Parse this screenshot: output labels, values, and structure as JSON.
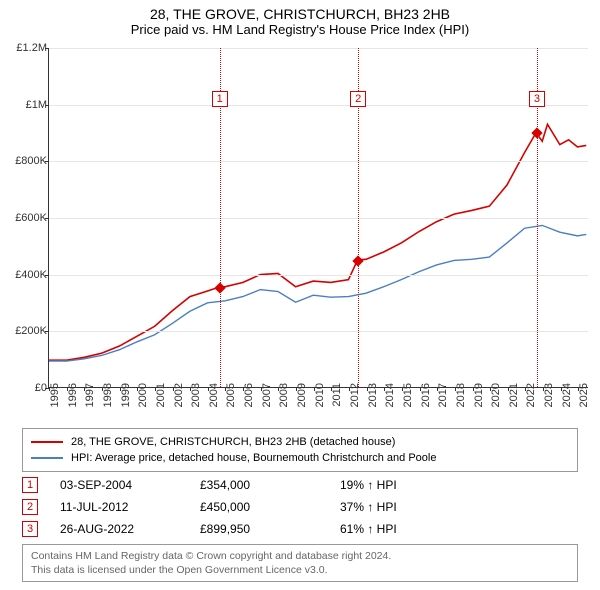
{
  "title": "28, THE GROVE, CHRISTCHURCH, BH23 2HB",
  "subtitle": "Price paid vs. HM Land Registry's House Price Index (HPI)",
  "chart": {
    "type": "line",
    "background_color": "#ffffff",
    "grid_color": "#e6e6e6",
    "axis_color": "#333333",
    "label_fontsize": 11,
    "x_years": [
      1995,
      1996,
      1997,
      1998,
      1999,
      2000,
      2001,
      2002,
      2003,
      2004,
      2005,
      2006,
      2007,
      2008,
      2009,
      2010,
      2011,
      2012,
      2013,
      2014,
      2015,
      2016,
      2017,
      2018,
      2019,
      2020,
      2021,
      2022,
      2023,
      2024,
      2025
    ],
    "xlim": [
      1995,
      2025.6
    ],
    "ylim": [
      0,
      1200000
    ],
    "ytick_step": 200000,
    "ytick_labels": [
      "£0",
      "£200K",
      "£400K",
      "£600K",
      "£800K",
      "£1M",
      "£1.2M"
    ],
    "series": [
      {
        "name": "price_paid",
        "color": "#d60000",
        "line_width": 1.6,
        "points": [
          [
            1995,
            95000
          ],
          [
            1996,
            95000
          ],
          [
            1997,
            105000
          ],
          [
            1998,
            120000
          ],
          [
            1999,
            145000
          ],
          [
            2000,
            180000
          ],
          [
            2001,
            215000
          ],
          [
            2002,
            270000
          ],
          [
            2003,
            320000
          ],
          [
            2004,
            340000
          ],
          [
            2004.67,
            354000
          ],
          [
            2005,
            355000
          ],
          [
            2006,
            370000
          ],
          [
            2007,
            398000
          ],
          [
            2008,
            402000
          ],
          [
            2009,
            355000
          ],
          [
            2010,
            375000
          ],
          [
            2011,
            370000
          ],
          [
            2012,
            380000
          ],
          [
            2012.52,
            450000
          ],
          [
            2013,
            452000
          ],
          [
            2014,
            478000
          ],
          [
            2015,
            510000
          ],
          [
            2016,
            550000
          ],
          [
            2017,
            585000
          ],
          [
            2018,
            612000
          ],
          [
            2019,
            625000
          ],
          [
            2020,
            640000
          ],
          [
            2021,
            715000
          ],
          [
            2022,
            830000
          ],
          [
            2022.65,
            899950
          ],
          [
            2023,
            870000
          ],
          [
            2023.3,
            930000
          ],
          [
            2024,
            858000
          ],
          [
            2024.5,
            875000
          ],
          [
            2025,
            850000
          ],
          [
            2025.5,
            855000
          ]
        ]
      },
      {
        "name": "hpi",
        "color": "#4a7fc4",
        "line_width": 1.4,
        "points": [
          [
            1995,
            92000
          ],
          [
            1996,
            92000
          ],
          [
            1997,
            100000
          ],
          [
            1998,
            112000
          ],
          [
            1999,
            132000
          ],
          [
            2000,
            160000
          ],
          [
            2001,
            185000
          ],
          [
            2002,
            225000
          ],
          [
            2003,
            268000
          ],
          [
            2004,
            298000
          ],
          [
            2005,
            305000
          ],
          [
            2006,
            320000
          ],
          [
            2007,
            345000
          ],
          [
            2008,
            338000
          ],
          [
            2009,
            300000
          ],
          [
            2010,
            325000
          ],
          [
            2011,
            318000
          ],
          [
            2012,
            320000
          ],
          [
            2013,
            332000
          ],
          [
            2014,
            355000
          ],
          [
            2015,
            380000
          ],
          [
            2016,
            408000
          ],
          [
            2017,
            432000
          ],
          [
            2018,
            448000
          ],
          [
            2019,
            452000
          ],
          [
            2020,
            460000
          ],
          [
            2021,
            510000
          ],
          [
            2022,
            562000
          ],
          [
            2023,
            572000
          ],
          [
            2024,
            548000
          ],
          [
            2025,
            535000
          ],
          [
            2025.5,
            540000
          ]
        ]
      }
    ],
    "sale_markers": [
      {
        "n": "1",
        "year": 2004.67,
        "value": 354000,
        "color": "#d60000"
      },
      {
        "n": "2",
        "year": 2012.52,
        "value": 450000,
        "color": "#d60000"
      },
      {
        "n": "3",
        "year": 2022.65,
        "value": 899950,
        "color": "#d60000"
      }
    ],
    "marker_box_y_value": 1020000
  },
  "legend": {
    "items": [
      {
        "color": "#d60000",
        "label": "28, THE GROVE, CHRISTCHURCH, BH23 2HB (detached house)"
      },
      {
        "color": "#4a7fc4",
        "label": "HPI: Average price, detached house, Bournemouth Christchurch and Poole"
      }
    ]
  },
  "sales": [
    {
      "n": "1",
      "color": "#d60000",
      "date": "03-SEP-2004",
      "price": "£354,000",
      "hpi": "19% ↑ HPI"
    },
    {
      "n": "2",
      "color": "#d60000",
      "date": "11-JUL-2012",
      "price": "£450,000",
      "hpi": "37% ↑ HPI"
    },
    {
      "n": "3",
      "color": "#d60000",
      "date": "26-AUG-2022",
      "price": "£899,950",
      "hpi": "61% ↑ HPI"
    }
  ],
  "footer": {
    "line1": "Contains HM Land Registry data © Crown copyright and database right 2024.",
    "line2": "This data is licensed under the Open Government Licence v3.0."
  }
}
